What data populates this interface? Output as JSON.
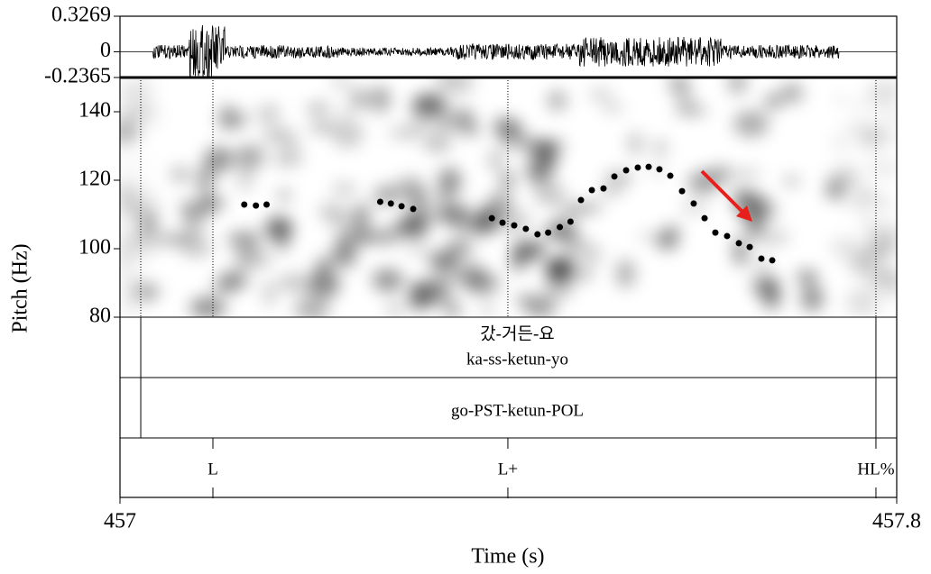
{
  "chart_data": {
    "type": "scatter",
    "xlabel": "Time (s)",
    "ylabel": "Pitch (Hz)",
    "xlim": [
      457,
      457.8
    ],
    "xticks": [
      457,
      457.8
    ],
    "ylim": [
      80,
      150
    ],
    "yticks": [
      80,
      100,
      120,
      140
    ],
    "color": "#000000",
    "x": [
      457.128,
      457.14,
      457.151,
      457.268,
      457.279,
      457.29,
      457.302,
      457.383,
      457.394,
      457.406,
      457.418,
      457.43,
      457.441,
      457.453,
      457.464,
      457.4748,
      457.486,
      457.498,
      457.5092,
      457.5213,
      457.5333,
      457.5445,
      457.5556,
      457.5668,
      457.5789,
      457.5909,
      457.6021,
      457.6132,
      457.6253,
      457.6374,
      457.6486,
      457.6606,
      457.6718
    ],
    "values": [
      112.9,
      112.6,
      112.9,
      113.7,
      113.2,
      112.4,
      111.6,
      108.9,
      107.6,
      106.8,
      105.8,
      104.2,
      104.7,
      106.3,
      107.9,
      114.2,
      117.1,
      117.6,
      121.1,
      122.9,
      123.7,
      123.9,
      123.2,
      121.3,
      116.8,
      113.2,
      108.9,
      104.7,
      103.7,
      101.6,
      100.5,
      97.1,
      96.6
    ],
    "waveform": {
      "ylim": [
        -0.2365,
        0.3269
      ],
      "yticks": [
        -0.2365,
        0,
        0.3269
      ]
    },
    "tiers": [
      {
        "interval": [
          457.0214,
          457.7786
        ],
        "texts": [
          "갔-거든-요",
          "ka-ss-ketun-yo"
        ]
      },
      {
        "interval": [
          457.0214,
          457.7786
        ],
        "texts": [
          "go-PST-ketun-POL"
        ]
      },
      {
        "points": [
          {
            "time": 457.0957,
            "label": "L"
          },
          {
            "time": 457.3995,
            "label": "L+"
          },
          {
            "time": 457.7786,
            "label": "HL%"
          }
        ]
      }
    ]
  }
}
